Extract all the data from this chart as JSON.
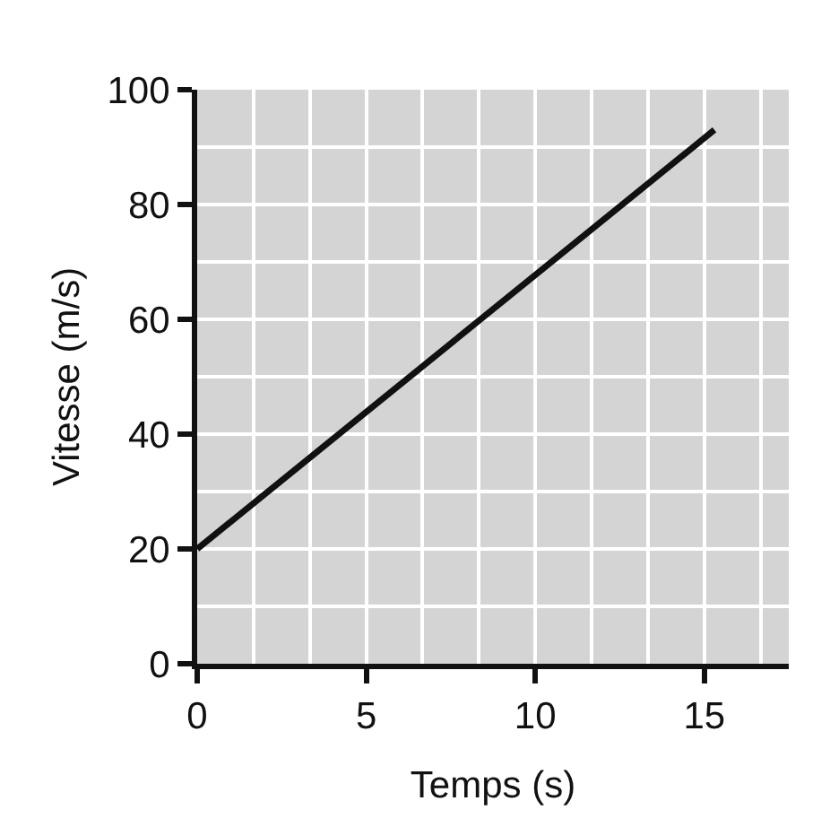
{
  "chart_data": {
    "type": "line",
    "xlabel": "Temps (s)",
    "ylabel": "Vitesse (m/s)",
    "x": [
      0,
      15.3
    ],
    "values": [
      20,
      93
    ],
    "color": "#111111",
    "xlim": [
      0,
      17.5
    ],
    "ylim": [
      0,
      100
    ],
    "xticks": [
      0,
      {
        "value": 1.667,
        "label": null
      },
      {
        "value": 3.333,
        "label": null
      },
      5,
      {
        "value": 6.667,
        "label": null
      },
      {
        "value": 8.333,
        "label": null
      },
      10,
      {
        "value": 11.667,
        "label": null
      },
      {
        "value": 13.333,
        "label": null
      },
      15,
      {
        "value": 16.667,
        "label": null
      }
    ],
    "yticks": [
      0,
      {
        "value": 10,
        "label": null
      },
      20,
      {
        "value": 30,
        "label": null
      },
      40,
      {
        "value": 50,
        "label": null
      },
      60,
      {
        "value": 70,
        "label": null
      },
      80,
      {
        "value": 90,
        "label": null
      },
      100
    ],
    "grid": true,
    "marker": "none",
    "line_style": "solid"
  }
}
